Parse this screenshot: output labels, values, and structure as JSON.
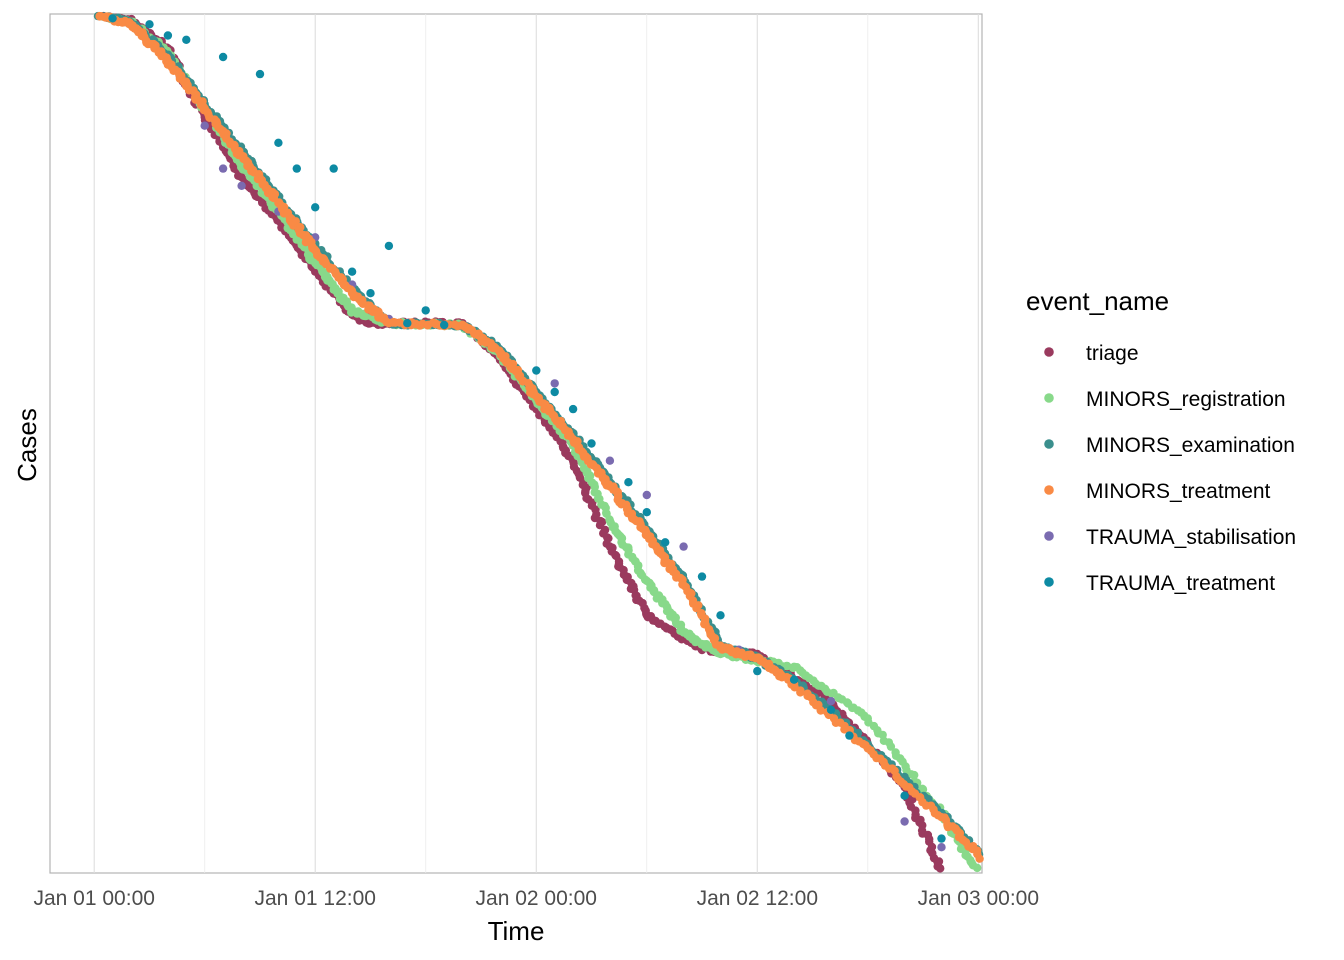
{
  "chart_data": {
    "type": "scatter",
    "title": "",
    "xlabel": "Time",
    "ylabel": "Cases",
    "x_ticks": [
      "Jan 01 00:00",
      "Jan 01 12:00",
      "Jan 02 00:00",
      "Jan 02 12:00",
      "Jan 03 00:00"
    ],
    "x_range_hours": [
      -2.4,
      48.2
    ],
    "y_range": [
      0,
      1000
    ],
    "y_reversed": true,
    "grid": "vertical major and minor lines",
    "legend": {
      "title": "event_name",
      "placement": "right"
    },
    "colors": {
      "MINORS_examination": "#3a8f8d",
      "MINORS_registration": "#88d98a",
      "MINORS_treatment": "#f98a45",
      "TRAUMA_stabilisation": "#7a6bb0",
      "TRAUMA_treatment": "#0d8aa3",
      "triage": "#9a3a5e"
    },
    "series": [
      {
        "name": "triage",
        "points": [
          [
            0,
            0
          ],
          [
            2,
            8
          ],
          [
            4,
            40
          ],
          [
            6,
            120
          ],
          [
            8,
            190
          ],
          [
            10,
            240
          ],
          [
            12,
            300
          ],
          [
            14,
            350
          ],
          [
            15,
            360
          ],
          [
            20,
            360
          ],
          [
            22,
            400
          ],
          [
            24,
            460
          ],
          [
            26,
            520
          ],
          [
            28,
            620
          ],
          [
            30,
            700
          ],
          [
            33,
            740
          ],
          [
            36,
            745
          ],
          [
            40,
            800
          ],
          [
            44,
            900
          ],
          [
            46,
            1000
          ]
        ]
      },
      {
        "name": "MINORS_registration",
        "points": [
          [
            0,
            0
          ],
          [
            2,
            9
          ],
          [
            4,
            45
          ],
          [
            6,
            110
          ],
          [
            8,
            175
          ],
          [
            10,
            230
          ],
          [
            12,
            290
          ],
          [
            14,
            345
          ],
          [
            16,
            360
          ],
          [
            20,
            362
          ],
          [
            22,
            395
          ],
          [
            24,
            450
          ],
          [
            26,
            500
          ],
          [
            28,
            590
          ],
          [
            30,
            660
          ],
          [
            32,
            720
          ],
          [
            34,
            745
          ],
          [
            38,
            760
          ],
          [
            42,
            820
          ],
          [
            46,
            930
          ],
          [
            48,
            1000
          ]
        ]
      },
      {
        "name": "MINORS_examination",
        "points": [
          [
            0,
            0
          ],
          [
            2,
            10
          ],
          [
            4,
            50
          ],
          [
            6,
            105
          ],
          [
            8,
            160
          ],
          [
            10,
            215
          ],
          [
            12,
            270
          ],
          [
            14,
            320
          ],
          [
            16,
            360
          ],
          [
            20,
            362
          ],
          [
            22,
            390
          ],
          [
            24,
            440
          ],
          [
            26,
            490
          ],
          [
            28,
            545
          ],
          [
            30,
            600
          ],
          [
            32,
            660
          ],
          [
            34,
            735
          ],
          [
            36,
            750
          ],
          [
            38,
            775
          ],
          [
            42,
            850
          ],
          [
            46,
            930
          ],
          [
            49,
            1000
          ]
        ]
      },
      {
        "name": "MINORS_treatment",
        "points": [
          [
            0,
            0
          ],
          [
            2,
            12
          ],
          [
            4,
            55
          ],
          [
            6,
            110
          ],
          [
            8,
            165
          ],
          [
            10,
            220
          ],
          [
            12,
            275
          ],
          [
            14,
            325
          ],
          [
            16,
            360
          ],
          [
            20,
            362
          ],
          [
            22,
            392
          ],
          [
            24,
            445
          ],
          [
            26,
            495
          ],
          [
            28,
            550
          ],
          [
            30,
            605
          ],
          [
            32,
            665
          ],
          [
            34,
            738
          ],
          [
            36,
            750
          ],
          [
            38,
            780
          ],
          [
            42,
            855
          ],
          [
            46,
            935
          ],
          [
            49,
            1000
          ]
        ]
      },
      {
        "name": "TRAUMA_stabilisation",
        "points": [
          [
            6,
            130
          ],
          [
            7,
            180
          ],
          [
            8,
            200
          ],
          [
            10,
            230
          ],
          [
            12,
            260
          ],
          [
            14,
            315
          ],
          [
            15,
            345
          ],
          [
            16,
            355
          ],
          [
            25,
            430
          ],
          [
            28,
            520
          ],
          [
            30,
            560
          ],
          [
            32,
            620
          ],
          [
            35,
            740
          ],
          [
            40,
            800
          ],
          [
            44,
            940
          ],
          [
            46,
            970
          ]
        ]
      },
      {
        "name": "TRAUMA_treatment",
        "points": [
          [
            1,
            5
          ],
          [
            3,
            12
          ],
          [
            4,
            25
          ],
          [
            5,
            30
          ],
          [
            7,
            50
          ],
          [
            9,
            70
          ],
          [
            10,
            150
          ],
          [
            11,
            180
          ],
          [
            12,
            225
          ],
          [
            13,
            180
          ],
          [
            14,
            300
          ],
          [
            15,
            325
          ],
          [
            16,
            270
          ],
          [
            17,
            360
          ],
          [
            18,
            345
          ],
          [
            19,
            362
          ],
          [
            24,
            415
          ],
          [
            25,
            440
          ],
          [
            26,
            460
          ],
          [
            27,
            500
          ],
          [
            29,
            545
          ],
          [
            30,
            580
          ],
          [
            31,
            615
          ],
          [
            33,
            655
          ],
          [
            34,
            700
          ],
          [
            36,
            765
          ],
          [
            38,
            775
          ],
          [
            40,
            810
          ],
          [
            41,
            840
          ],
          [
            44,
            910
          ],
          [
            46,
            960
          ]
        ]
      }
    ]
  }
}
